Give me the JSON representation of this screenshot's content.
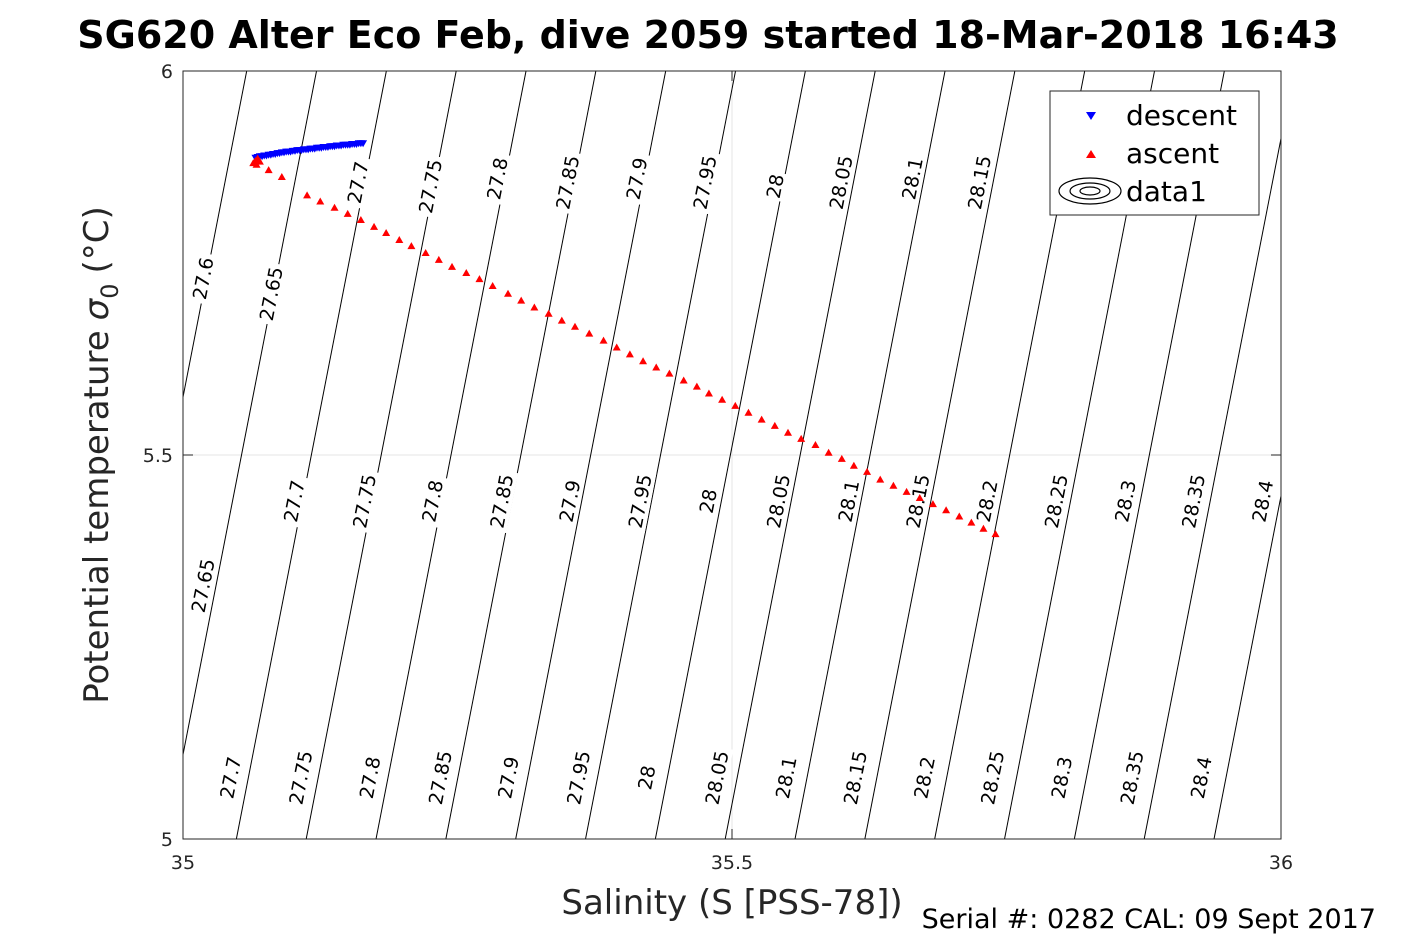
{
  "chart_data": {
    "type": "scatter",
    "title": "SG620 Alter Eco Feb, dive 2059 started 18-Mar-2018 16:43",
    "xlabel": "Salinity (S [PSS-78])",
    "ylabel": "Potential temperature",
    "ylabel_symbol": "σ",
    "ylabel_subscript": "0",
    "ylabel_unit": "(°C)",
    "xlim": [
      35,
      36
    ],
    "ylim": [
      5,
      6
    ],
    "x_ticks": [
      "35",
      "35.5",
      "36"
    ],
    "y_ticks": [
      "5",
      "5.5",
      "6"
    ],
    "grid": true,
    "legend_position": "top-right",
    "legend": [
      {
        "label": "descent",
        "marker": "down-triangle",
        "color": "#0000ff"
      },
      {
        "label": "ascent",
        "marker": "up-triangle",
        "color": "#ff0000"
      },
      {
        "label": "data1",
        "marker": "contour",
        "color": "#000000"
      }
    ],
    "series": [
      {
        "name": "descent",
        "color": "#0000ff",
        "points": [
          [
            35.066,
            5.887
          ],
          [
            35.068,
            5.888
          ],
          [
            35.07,
            5.889
          ],
          [
            35.072,
            5.889
          ],
          [
            35.074,
            5.89
          ],
          [
            35.076,
            5.89
          ],
          [
            35.078,
            5.891
          ],
          [
            35.08,
            5.891
          ],
          [
            35.082,
            5.892
          ],
          [
            35.084,
            5.892
          ],
          [
            35.086,
            5.893
          ],
          [
            35.088,
            5.893
          ],
          [
            35.09,
            5.894
          ],
          [
            35.092,
            5.894
          ],
          [
            35.094,
            5.895
          ],
          [
            35.096,
            5.895
          ],
          [
            35.098,
            5.895
          ],
          [
            35.1,
            5.896
          ],
          [
            35.102,
            5.896
          ],
          [
            35.104,
            5.897
          ],
          [
            35.106,
            5.897
          ],
          [
            35.108,
            5.897
          ],
          [
            35.11,
            5.898
          ],
          [
            35.112,
            5.898
          ],
          [
            35.114,
            5.898
          ],
          [
            35.116,
            5.899
          ],
          [
            35.118,
            5.899
          ],
          [
            35.12,
            5.899
          ],
          [
            35.122,
            5.9
          ],
          [
            35.124,
            5.9
          ],
          [
            35.126,
            5.9
          ],
          [
            35.128,
            5.901
          ],
          [
            35.13,
            5.901
          ],
          [
            35.132,
            5.901
          ],
          [
            35.134,
            5.902
          ],
          [
            35.136,
            5.902
          ],
          [
            35.138,
            5.902
          ],
          [
            35.14,
            5.903
          ],
          [
            35.142,
            5.903
          ],
          [
            35.144,
            5.903
          ],
          [
            35.146,
            5.904
          ],
          [
            35.148,
            5.904
          ],
          [
            35.15,
            5.904
          ],
          [
            35.152,
            5.904
          ],
          [
            35.154,
            5.905
          ],
          [
            35.156,
            5.905
          ],
          [
            35.158,
            5.905
          ],
          [
            35.16,
            5.906
          ],
          [
            35.162,
            5.906
          ],
          [
            35.164,
            5.906
          ]
        ]
      },
      {
        "name": "ascent",
        "color": "#ff0000",
        "points": [
          [
            35.064,
            5.88
          ],
          [
            35.066,
            5.883
          ],
          [
            35.068,
            5.886
          ],
          [
            35.067,
            5.878
          ],
          [
            35.07,
            5.882
          ],
          [
            35.078,
            5.871
          ],
          [
            35.09,
            5.862
          ],
          [
            35.113,
            5.838
          ],
          [
            35.125,
            5.83
          ],
          [
            35.138,
            5.822
          ],
          [
            35.15,
            5.814
          ],
          [
            35.162,
            5.806
          ],
          [
            35.174,
            5.797
          ],
          [
            35.185,
            5.789
          ],
          [
            35.197,
            5.78
          ],
          [
            35.208,
            5.772
          ],
          [
            35.221,
            5.763
          ],
          [
            35.233,
            5.754
          ],
          [
            35.245,
            5.745
          ],
          [
            35.258,
            5.737
          ],
          [
            35.27,
            5.729
          ],
          [
            35.282,
            5.72
          ],
          [
            35.296,
            5.71
          ],
          [
            35.308,
            5.701
          ],
          [
            35.32,
            5.692
          ],
          [
            35.333,
            5.684
          ],
          [
            35.345,
            5.675
          ],
          [
            35.357,
            5.667
          ],
          [
            35.37,
            5.658
          ],
          [
            35.383,
            5.649
          ],
          [
            35.395,
            5.64
          ],
          [
            35.407,
            5.631
          ],
          [
            35.419,
            5.622
          ],
          [
            35.431,
            5.614
          ],
          [
            35.443,
            5.606
          ],
          [
            35.456,
            5.597
          ],
          [
            35.468,
            5.589
          ],
          [
            35.479,
            5.58
          ],
          [
            35.491,
            5.572
          ],
          [
            35.503,
            5.564
          ],
          [
            35.515,
            5.555
          ],
          [
            35.527,
            5.546
          ],
          [
            35.539,
            5.538
          ],
          [
            35.551,
            5.529
          ],
          [
            35.563,
            5.521
          ],
          [
            35.576,
            5.513
          ],
          [
            35.588,
            5.503
          ],
          [
            35.6,
            5.495
          ],
          [
            35.611,
            5.486
          ],
          [
            35.623,
            5.478
          ],
          [
            35.635,
            5.468
          ],
          [
            35.647,
            5.46
          ],
          [
            35.659,
            5.452
          ],
          [
            35.671,
            5.444
          ],
          [
            35.683,
            5.436
          ],
          [
            35.695,
            5.428
          ],
          [
            35.707,
            5.42
          ],
          [
            35.718,
            5.412
          ],
          [
            35.729,
            5.404
          ],
          [
            35.74,
            5.397
          ]
        ]
      }
    ],
    "contours": {
      "levels": [
        27.6,
        27.65,
        27.7,
        27.75,
        27.8,
        27.85,
        27.9,
        27.95,
        28.0,
        28.05,
        28.1,
        28.15,
        28.2,
        28.25,
        28.3,
        28.35,
        28.4
      ],
      "level_labels": [
        "27.6",
        "27.65",
        "27.7",
        "27.75",
        "27.8",
        "27.85",
        "27.9",
        "27.95",
        "28",
        "28.05",
        "28.1",
        "28.15",
        "28.2",
        "28.25",
        "28.3",
        "28.35",
        "28.4"
      ],
      "reference": {
        "level": 27.6,
        "salinity_at_6C": 35.058
      },
      "salinity_per_level": 0.0636,
      "salinity_per_degree": 0.1366,
      "labels": [
        {
          "text": "27.6",
          "x": 35.018,
          "y": 5.73
        },
        {
          "text": "27.65",
          "x": 35.08,
          "y": 5.71
        },
        {
          "text": "27.7",
          "x": 35.159,
          "y": 5.855
        },
        {
          "text": "27.75",
          "x": 35.225,
          "y": 5.85
        },
        {
          "text": "27.8",
          "x": 35.286,
          "y": 5.86
        },
        {
          "text": "27.85",
          "x": 35.35,
          "y": 5.855
        },
        {
          "text": "27.9",
          "x": 35.413,
          "y": 5.86
        },
        {
          "text": "27.95",
          "x": 35.475,
          "y": 5.855
        },
        {
          "text": "28",
          "x": 35.539,
          "y": 5.85
        },
        {
          "text": "28.05",
          "x": 35.599,
          "y": 5.855
        },
        {
          "text": "28.1",
          "x": 35.664,
          "y": 5.86
        },
        {
          "text": "28.15",
          "x": 35.725,
          "y": 5.855
        },
        {
          "text": "27.65",
          "x": 35.018,
          "y": 5.33
        },
        {
          "text": "27.7",
          "x": 35.101,
          "y": 5.44
        },
        {
          "text": "27.75",
          "x": 35.165,
          "y": 5.44
        },
        {
          "text": "27.8",
          "x": 35.227,
          "y": 5.44
        },
        {
          "text": "27.85",
          "x": 35.29,
          "y": 5.44
        },
        {
          "text": "27.9",
          "x": 35.352,
          "y": 5.44
        },
        {
          "text": "27.95",
          "x": 35.416,
          "y": 5.44
        },
        {
          "text": "28",
          "x": 35.478,
          "y": 5.44
        },
        {
          "text": "28.05",
          "x": 35.542,
          "y": 5.44
        },
        {
          "text": "28.1",
          "x": 35.606,
          "y": 5.44
        },
        {
          "text": "28.15",
          "x": 35.669,
          "y": 5.44
        },
        {
          "text": "28.2",
          "x": 35.732,
          "y": 5.44
        },
        {
          "text": "28.25",
          "x": 35.795,
          "y": 5.44
        },
        {
          "text": "28.3",
          "x": 35.858,
          "y": 5.44
        },
        {
          "text": "28.35",
          "x": 35.92,
          "y": 5.44
        },
        {
          "text": "28.4",
          "x": 35.983,
          "y": 5.44
        },
        {
          "text": "27.7",
          "x": 35.043,
          "y": 5.08
        },
        {
          "text": "27.75",
          "x": 35.107,
          "y": 5.08
        },
        {
          "text": "27.8",
          "x": 35.17,
          "y": 5.08
        },
        {
          "text": "27.85",
          "x": 35.234,
          "y": 5.08
        },
        {
          "text": "27.9",
          "x": 35.296,
          "y": 5.08
        },
        {
          "text": "27.95",
          "x": 35.36,
          "y": 5.08
        },
        {
          "text": "28",
          "x": 35.422,
          "y": 5.08
        },
        {
          "text": "28.05",
          "x": 35.486,
          "y": 5.08
        },
        {
          "text": "28.1",
          "x": 35.549,
          "y": 5.08
        },
        {
          "text": "28.15",
          "x": 35.612,
          "y": 5.08
        },
        {
          "text": "28.2",
          "x": 35.675,
          "y": 5.08
        },
        {
          "text": "28.25",
          "x": 35.737,
          "y": 5.08
        },
        {
          "text": "28.3",
          "x": 35.8,
          "y": 5.08
        },
        {
          "text": "28.35",
          "x": 35.864,
          "y": 5.08
        },
        {
          "text": "28.4",
          "x": 35.927,
          "y": 5.08
        }
      ]
    }
  },
  "footer": {
    "serial": "Serial #: 0282  CAL: 09 Sept 2017"
  }
}
